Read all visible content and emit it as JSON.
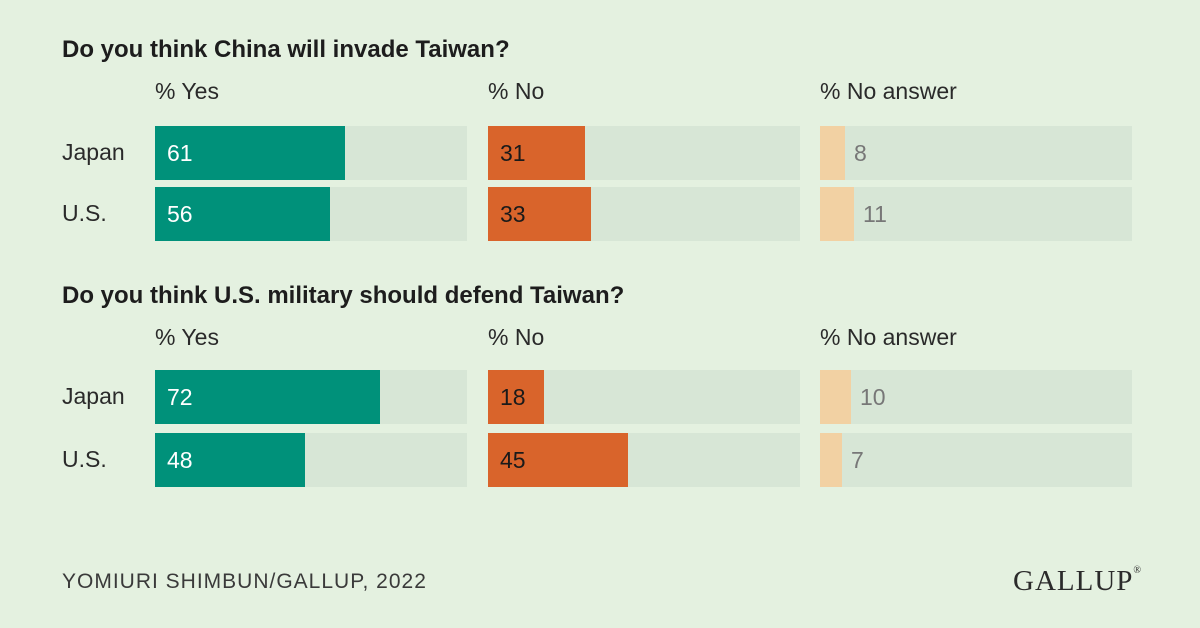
{
  "chart_data": {
    "type": "bar",
    "xlim": [
      0,
      100
    ],
    "column_headers": [
      "% Yes",
      "% No",
      "% No answer"
    ],
    "colors": {
      "yes": "#00917a",
      "no": "#d9642b",
      "no_answer": "#f2d1a3",
      "track": "#d7e6d6"
    },
    "panels": [
      {
        "title": "Do you think China will invade Taiwan?",
        "categories": [
          "Japan",
          "U.S."
        ],
        "series": [
          {
            "name": "% Yes",
            "values": [
              61,
              56
            ]
          },
          {
            "name": "% No",
            "values": [
              31,
              33
            ]
          },
          {
            "name": "% No answer",
            "values": [
              8,
              11
            ]
          }
        ]
      },
      {
        "title": "Do you think U.S. military should defend Taiwan?",
        "categories": [
          "Japan",
          "U.S."
        ],
        "series": [
          {
            "name": "% Yes",
            "values": [
              72,
              48
            ]
          },
          {
            "name": "% No",
            "values": [
              18,
              45
            ]
          },
          {
            "name": "% No answer",
            "values": [
              10,
              7
            ]
          }
        ]
      }
    ]
  },
  "footer": {
    "source": "YOMIURI SHIMBUN/GALLUP, 2022",
    "brand": "GALLUP",
    "brand_mark": "®"
  }
}
